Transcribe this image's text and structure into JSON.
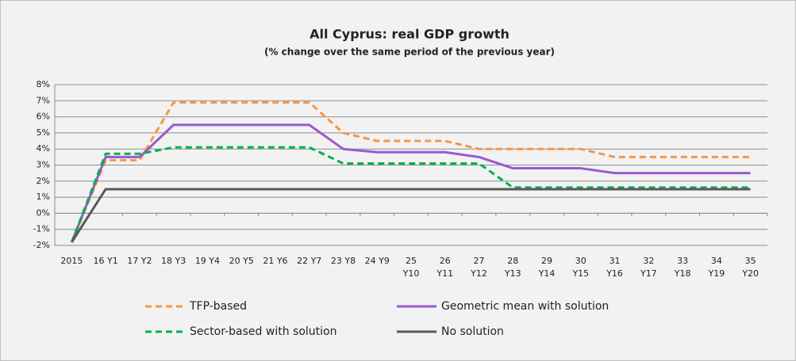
{
  "chart_data": {
    "type": "line",
    "title": "All Cyprus: real GDP growth",
    "subtitle": "(% change over the same period of the previous year)",
    "categories": [
      "2015",
      "16 Y1",
      "17 Y2",
      "18 Y3",
      "19 Y4",
      "20 Y5",
      "21 Y6",
      "22 Y7",
      "23 Y8",
      "24 Y9",
      "25 Y10",
      "26 Y11",
      "27 Y12",
      "28 Y13",
      "29 Y14",
      "30 Y15",
      "31 Y16",
      "32 Y17",
      "33 Y18",
      "34 Y19",
      "35 Y20"
    ],
    "series": [
      {
        "name": "TFP-based",
        "color": "#f79646",
        "dashed": true,
        "values": [
          -1.8,
          3.3,
          3.3,
          6.9,
          6.9,
          6.9,
          6.9,
          6.9,
          5.0,
          4.5,
          4.5,
          4.5,
          4.0,
          4.0,
          4.0,
          4.0,
          3.5,
          3.5,
          3.5,
          3.5,
          3.5
        ]
      },
      {
        "name": "Geometric mean with solution",
        "color": "#9b59d0",
        "dashed": false,
        "values": [
          -1.8,
          3.5,
          3.5,
          5.5,
          5.5,
          5.5,
          5.5,
          5.5,
          4.0,
          3.8,
          3.8,
          3.8,
          3.5,
          2.8,
          2.8,
          2.8,
          2.5,
          2.5,
          2.5,
          2.5,
          2.5
        ]
      },
      {
        "name": "Sector-based with solution",
        "color": "#00b050",
        "dashed": true,
        "values": [
          -1.8,
          3.7,
          3.7,
          4.1,
          4.1,
          4.1,
          4.1,
          4.1,
          3.1,
          3.1,
          3.1,
          3.1,
          3.1,
          1.6,
          1.6,
          1.6,
          1.6,
          1.6,
          1.6,
          1.6,
          1.6
        ]
      },
      {
        "name": "No solution",
        "color": "#595959",
        "dashed": false,
        "values": [
          -1.8,
          1.5,
          1.5,
          1.5,
          1.5,
          1.5,
          1.5,
          1.5,
          1.5,
          1.5,
          1.5,
          1.5,
          1.5,
          1.5,
          1.5,
          1.5,
          1.5,
          1.5,
          1.5,
          1.5,
          1.5
        ]
      }
    ],
    "ylim": [
      -2,
      8
    ],
    "yticks": [
      {
        "value": -2,
        "label": "-2%"
      },
      {
        "value": -1,
        "label": "-1%"
      },
      {
        "value": 0,
        "label": "0%"
      },
      {
        "value": 1,
        "label": "1%"
      },
      {
        "value": 2,
        "label": "2%"
      },
      {
        "value": 3,
        "label": "3%"
      },
      {
        "value": 4,
        "label": "4%"
      },
      {
        "value": 5,
        "label": "5%"
      },
      {
        "value": 6,
        "label": "6%"
      },
      {
        "value": 7,
        "label": "7%"
      },
      {
        "value": 8,
        "label": "8%"
      }
    ],
    "grid": true
  }
}
